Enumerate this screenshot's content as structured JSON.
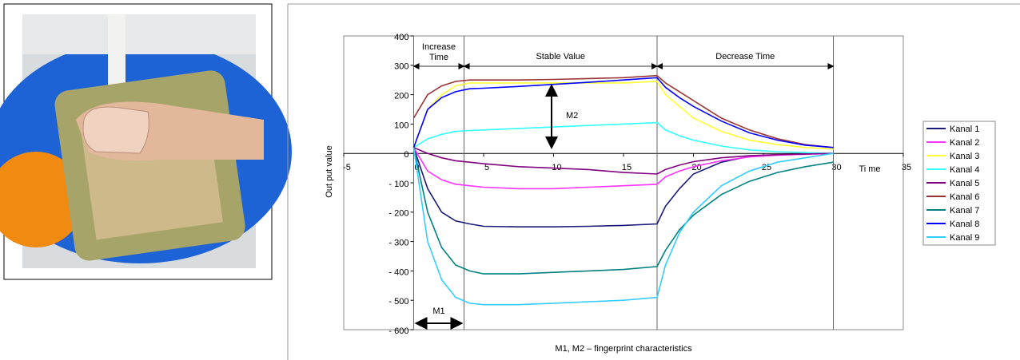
{
  "chart_data": {
    "type": "line",
    "x_label": "Ti me",
    "y_label": "Out put value",
    "caption": "M1, M2 – fingerprint characteristics",
    "phase_labels": {
      "increase": [
        "Increase",
        "Time"
      ],
      "stable": "Stable Value",
      "decrease": "Decrease Time"
    },
    "m1_label": "M1",
    "m2_label": "M2",
    "phase_lines_x": [
      0,
      3.6,
      17.4,
      30
    ],
    "xlim": [
      -5,
      35
    ],
    "xticks": [
      -5,
      0,
      5,
      10,
      15,
      20,
      25,
      30,
      35
    ],
    "ylim": [
      -600,
      400
    ],
    "yticks": [
      400,
      300,
      200,
      100,
      0,
      {
        "value": -100,
        "label": "- 100"
      },
      {
        "value": -200,
        "label": "- 200"
      },
      {
        "value": -300,
        "label": "- 300"
      },
      {
        "value": -400,
        "label": "- 400"
      },
      {
        "value": -500,
        "label": "- 500"
      },
      {
        "value": -600,
        "label": "- 600"
      }
    ],
    "grid": false,
    "x": [
      0,
      1,
      2,
      3,
      4,
      5,
      7.5,
      10,
      12.5,
      15,
      17.4,
      18,
      19,
      20,
      22,
      24,
      26,
      28,
      30
    ],
    "series": [
      {
        "name": "Kanal 1",
        "color": "#1a1a7a",
        "values": [
          20,
          -120,
          -200,
          -230,
          -240,
          -248,
          -250,
          -250,
          -248,
          -245,
          -240,
          -180,
          -120,
          -70,
          -30,
          -10,
          -5,
          -2,
          0
        ]
      },
      {
        "name": "Kanal 2",
        "color": "#ff33ff",
        "values": [
          20,
          -60,
          -90,
          -105,
          -110,
          -115,
          -120,
          -120,
          -115,
          -110,
          -105,
          -80,
          -60,
          -45,
          -25,
          -12,
          -6,
          -3,
          0
        ]
      },
      {
        "name": "Kanal 3",
        "color": "#ffff33",
        "values": [
          20,
          150,
          200,
          230,
          240,
          240,
          240,
          240,
          240,
          240,
          245,
          200,
          160,
          120,
          75,
          45,
          30,
          20,
          15
        ]
      },
      {
        "name": "Kanal 4",
        "color": "#33ffff",
        "values": [
          20,
          50,
          65,
          75,
          78,
          80,
          85,
          90,
          95,
          100,
          105,
          80,
          60,
          45,
          25,
          12,
          6,
          3,
          0
        ]
      },
      {
        "name": "Kanal 5",
        "color": "#800080",
        "values": [
          20,
          0,
          -15,
          -25,
          -30,
          -35,
          -45,
          -50,
          -55,
          -65,
          -70,
          -55,
          -40,
          -28,
          -15,
          -8,
          -4,
          -2,
          0
        ]
      },
      {
        "name": "Kanal 6",
        "color": "#993333",
        "values": [
          120,
          200,
          230,
          245,
          250,
          250,
          250,
          252,
          255,
          258,
          265,
          240,
          210,
          180,
          120,
          80,
          50,
          30,
          20
        ]
      },
      {
        "name": "Kanal 7",
        "color": "#008080",
        "values": [
          20,
          -200,
          -320,
          -380,
          -400,
          -410,
          -410,
          -405,
          -400,
          -395,
          -385,
          -330,
          -260,
          -210,
          -140,
          -95,
          -65,
          -45,
          -30
        ]
      },
      {
        "name": "Kanal 8",
        "color": "#0000ff",
        "values": [
          20,
          150,
          190,
          210,
          220,
          222,
          228,
          235,
          242,
          250,
          258,
          225,
          190,
          160,
          110,
          70,
          45,
          28,
          20
        ]
      },
      {
        "name": "Kanal 9",
        "color": "#33ccff",
        "values": [
          20,
          -300,
          -430,
          -490,
          -510,
          -515,
          -515,
          -510,
          -505,
          -500,
          -490,
          -380,
          -270,
          -200,
          -110,
          -60,
          -30,
          -15,
          0
        ]
      }
    ]
  }
}
